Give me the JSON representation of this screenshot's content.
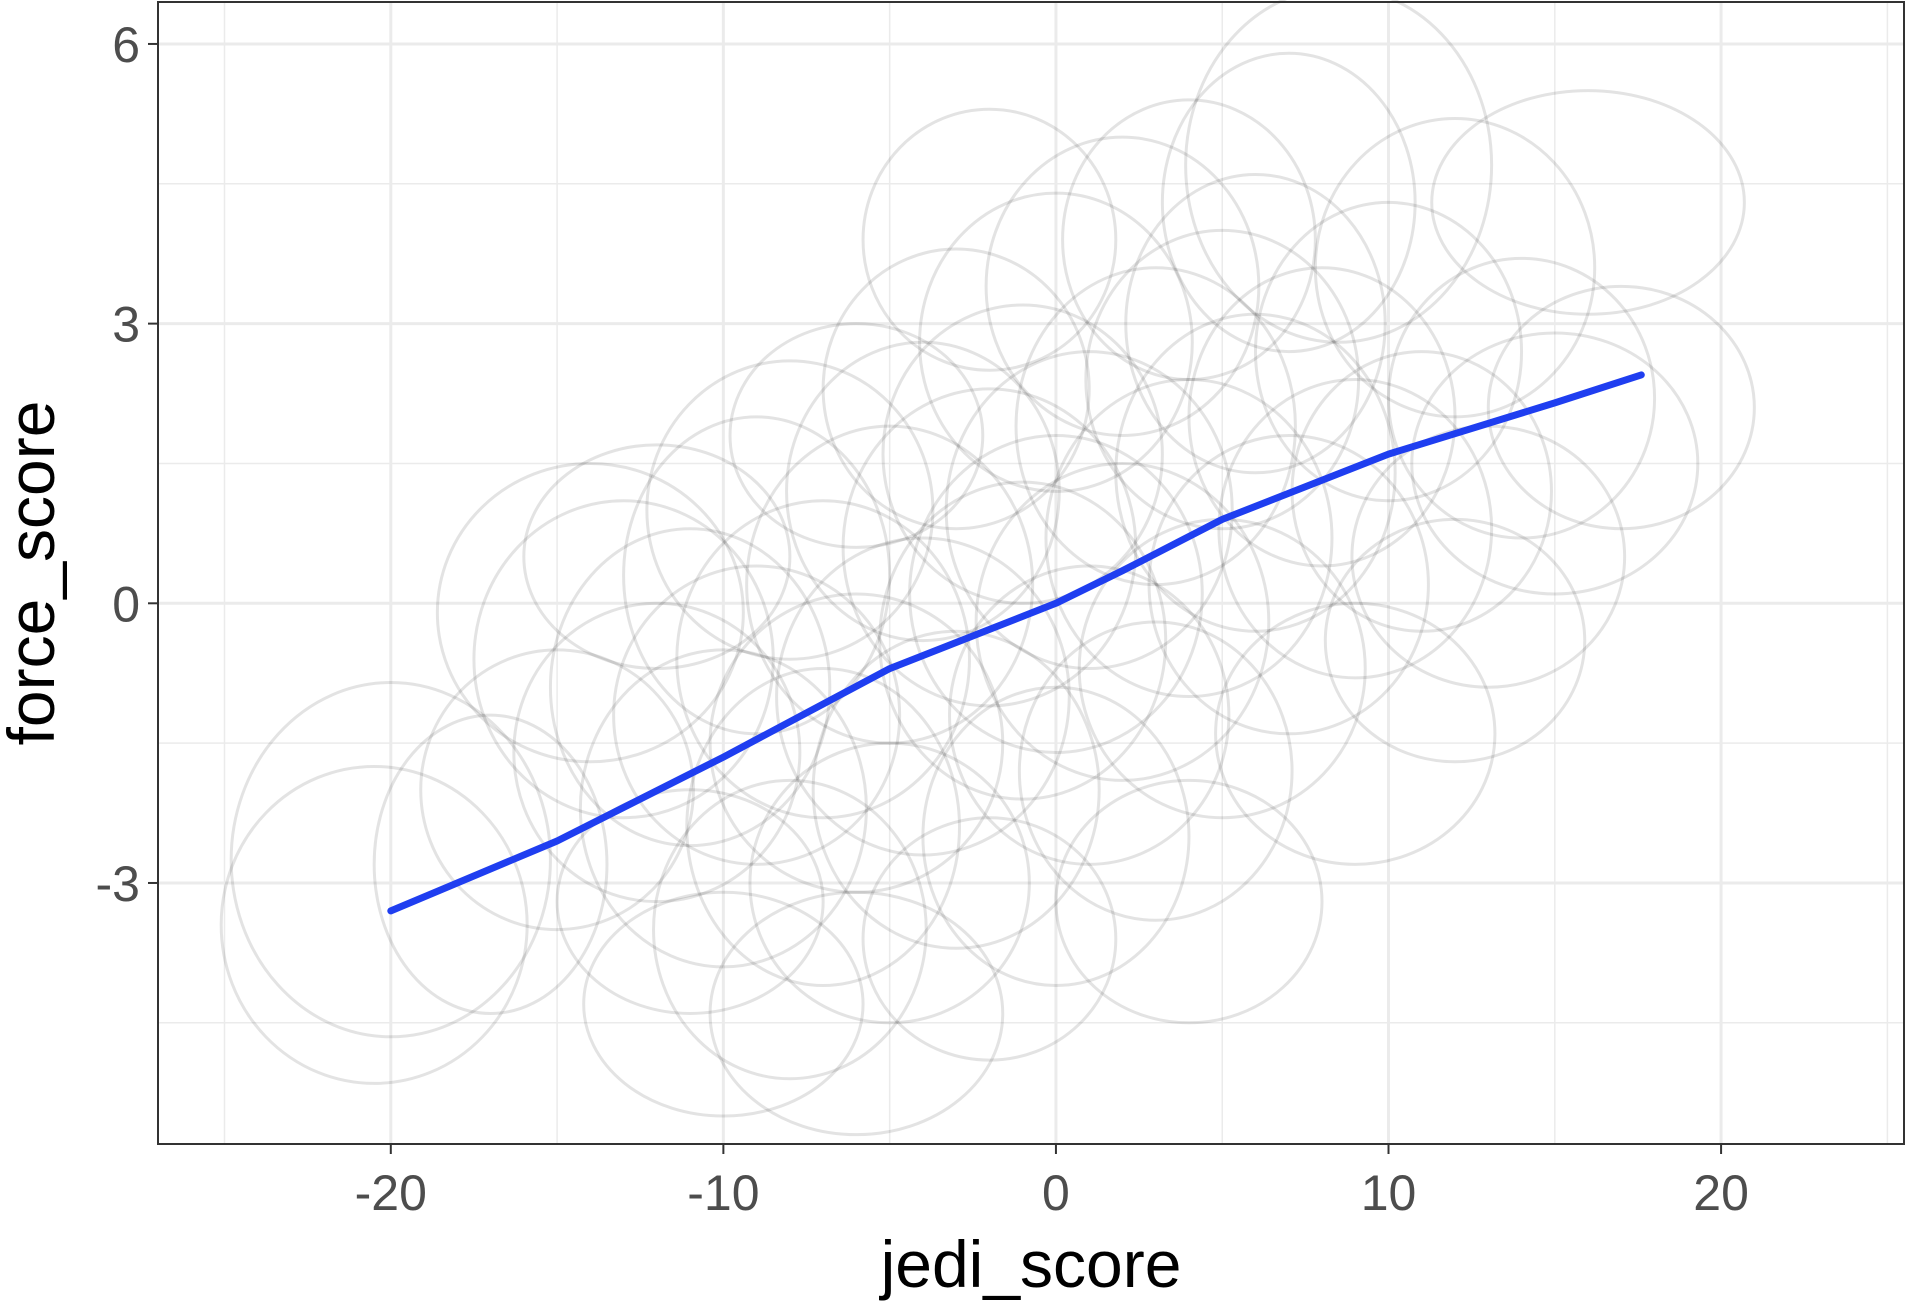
{
  "chart_data": {
    "type": "scatter",
    "title": "",
    "xlabel": "jedi_score",
    "ylabel": "force_score",
    "xlim": [
      -27,
      25.5
    ],
    "ylim": [
      -5.8,
      6.45
    ],
    "x_ticks": [
      -20,
      -10,
      0,
      10,
      20
    ],
    "x_tick_labels": [
      "-20",
      "-10",
      "0",
      "10",
      "20"
    ],
    "y_ticks": [
      -3,
      0,
      3,
      6
    ],
    "y_tick_labels": [
      "-3",
      "0",
      "3",
      "6"
    ],
    "x_minor_ticks": [
      -25,
      -15,
      -5,
      5,
      15,
      25
    ],
    "y_minor_ticks": [
      -4.5,
      -1.5,
      1.5,
      4.5
    ],
    "grid": true,
    "legend": "none",
    "colors": {
      "point_outline": "#000000",
      "trend_line": "#1f3ef0",
      "grid": "#ebebeb",
      "panel_border": "#333333"
    },
    "points": [
      {
        "x": -20,
        "y": -2.75,
        "rx": 4.8,
        "ry": 1.9
      },
      {
        "x": -20.5,
        "y": -3.45,
        "rx": 4.6,
        "ry": 1.7
      },
      {
        "x": -17,
        "y": -2.8,
        "rx": 3.5,
        "ry": 1.6
      },
      {
        "x": -14,
        "y": -0.1,
        "rx": 4.6,
        "ry": 1.6
      },
      {
        "x": -13,
        "y": -0.6,
        "rx": 4.5,
        "ry": 1.7
      },
      {
        "x": -12,
        "y": -1.6,
        "rx": 4.3,
        "ry": 1.6
      },
      {
        "x": -12,
        "y": 0.5,
        "rx": 4.0,
        "ry": 1.2
      },
      {
        "x": -11,
        "y": -0.9,
        "rx": 4.2,
        "ry": 1.7
      },
      {
        "x": -11,
        "y": -3.2,
        "rx": 4.0,
        "ry": 1.2
      },
      {
        "x": -10,
        "y": -2.2,
        "rx": 4.3,
        "ry": 1.7
      },
      {
        "x": -10,
        "y": -4.3,
        "rx": 4.2,
        "ry": 1.2
      },
      {
        "x": -9,
        "y": 0.3,
        "rx": 4.0,
        "ry": 1.7
      },
      {
        "x": -9,
        "y": -1.2,
        "rx": 4.3,
        "ry": 1.6
      },
      {
        "x": -8,
        "y": -3.5,
        "rx": 4.1,
        "ry": 1.6
      },
      {
        "x": -8,
        "y": 1.0,
        "rx": 4.3,
        "ry": 1.6
      },
      {
        "x": -7,
        "y": -0.6,
        "rx": 4.4,
        "ry": 1.7
      },
      {
        "x": -7,
        "y": -2.4,
        "rx": 4.1,
        "ry": 1.7
      },
      {
        "x": -6,
        "y": 1.8,
        "rx": 3.8,
        "ry": 1.2
      },
      {
        "x": -6,
        "y": -1.5,
        "rx": 4.4,
        "ry": 1.6
      },
      {
        "x": -5,
        "y": 0.2,
        "rx": 4.3,
        "ry": 1.7
      },
      {
        "x": -5,
        "y": -3.0,
        "rx": 4.2,
        "ry": 1.5
      },
      {
        "x": -4,
        "y": 1.2,
        "rx": 4.1,
        "ry": 1.6
      },
      {
        "x": -4,
        "y": -1.0,
        "rx": 4.4,
        "ry": 1.7
      },
      {
        "x": -3,
        "y": 2.3,
        "rx": 4.0,
        "ry": 1.5
      },
      {
        "x": -3,
        "y": -2.0,
        "rx": 4.3,
        "ry": 1.7
      },
      {
        "x": -2,
        "y": 0.6,
        "rx": 4.4,
        "ry": 1.7
      },
      {
        "x": -2,
        "y": -3.6,
        "rx": 3.8,
        "ry": 1.3
      },
      {
        "x": -1,
        "y": 1.6,
        "rx": 4.2,
        "ry": 1.6
      },
      {
        "x": -1,
        "y": -0.4,
        "rx": 4.3,
        "ry": 1.7
      },
      {
        "x": 0,
        "y": 2.8,
        "rx": 4.1,
        "ry": 1.6
      },
      {
        "x": 0,
        "y": 0.1,
        "rx": 4.4,
        "ry": 1.7
      },
      {
        "x": 0,
        "y": -2.5,
        "rx": 4.0,
        "ry": 1.6
      },
      {
        "x": 1,
        "y": 1.0,
        "rx": 4.3,
        "ry": 1.7
      },
      {
        "x": 1,
        "y": -1.2,
        "rx": 4.2,
        "ry": 1.6
      },
      {
        "x": 2,
        "y": 3.4,
        "rx": 4.1,
        "ry": 1.6
      },
      {
        "x": 2,
        "y": -0.2,
        "rx": 4.4,
        "ry": 1.7
      },
      {
        "x": 3,
        "y": 1.9,
        "rx": 4.2,
        "ry": 1.7
      },
      {
        "x": 3,
        "y": -1.8,
        "rx": 4.1,
        "ry": 1.6
      },
      {
        "x": 4,
        "y": 0.7,
        "rx": 4.3,
        "ry": 1.7
      },
      {
        "x": 4,
        "y": 3.9,
        "rx": 3.8,
        "ry": 1.5
      },
      {
        "x": 5,
        "y": 2.4,
        "rx": 4.1,
        "ry": 1.6
      },
      {
        "x": 5,
        "y": -0.7,
        "rx": 4.3,
        "ry": 1.6
      },
      {
        "x": 6,
        "y": 1.4,
        "rx": 4.2,
        "ry": 1.7
      },
      {
        "x": 6,
        "y": 3.0,
        "rx": 3.9,
        "ry": 1.6
      },
      {
        "x": 7,
        "y": 0.2,
        "rx": 4.2,
        "ry": 1.6
      },
      {
        "x": 7,
        "y": 4.3,
        "rx": 3.8,
        "ry": 1.6
      },
      {
        "x": 8,
        "y": 2.0,
        "rx": 4.0,
        "ry": 1.6
      },
      {
        "x": 8.5,
        "y": 4.7,
        "rx": 4.6,
        "ry": 1.9
      },
      {
        "x": 9,
        "y": 0.8,
        "rx": 4.1,
        "ry": 1.6
      },
      {
        "x": 10,
        "y": 2.7,
        "rx": 4.0,
        "ry": 1.6
      },
      {
        "x": 11,
        "y": 1.2,
        "rx": 3.9,
        "ry": 1.5
      },
      {
        "x": 12,
        "y": 3.6,
        "rx": 4.2,
        "ry": 1.6
      },
      {
        "x": 13,
        "y": 0.5,
        "rx": 4.1,
        "ry": 1.4
      },
      {
        "x": 14,
        "y": 2.2,
        "rx": 4.0,
        "ry": 1.5
      },
      {
        "x": 15,
        "y": 1.5,
        "rx": 4.3,
        "ry": 1.4
      },
      {
        "x": 16,
        "y": 4.3,
        "rx": 4.7,
        "ry": 1.2
      },
      {
        "x": 17,
        "y": 2.1,
        "rx": 4.0,
        "ry": 1.3
      },
      {
        "x": -15,
        "y": -2.0,
        "rx": 4.1,
        "ry": 1.5
      },
      {
        "x": -6,
        "y": -4.4,
        "rx": 4.4,
        "ry": 1.3
      },
      {
        "x": 4,
        "y": -3.2,
        "rx": 4.0,
        "ry": 1.3
      },
      {
        "x": 9,
        "y": -1.4,
        "rx": 4.2,
        "ry": 1.4
      },
      {
        "x": -2,
        "y": 3.9,
        "rx": 3.8,
        "ry": 1.4
      },
      {
        "x": 12,
        "y": -0.4,
        "rx": 3.9,
        "ry": 1.3
      }
    ],
    "trend": [
      {
        "x": -20,
        "y": -3.3
      },
      {
        "x": -15,
        "y": -2.55
      },
      {
        "x": -10,
        "y": -1.65
      },
      {
        "x": -5,
        "y": -0.7
      },
      {
        "x": 0,
        "y": 0.0
      },
      {
        "x": 2,
        "y": 0.35
      },
      {
        "x": 5,
        "y": 0.9
      },
      {
        "x": 10,
        "y": 1.6
      },
      {
        "x": 15,
        "y": 2.15
      },
      {
        "x": 17.6,
        "y": 2.45
      }
    ]
  }
}
